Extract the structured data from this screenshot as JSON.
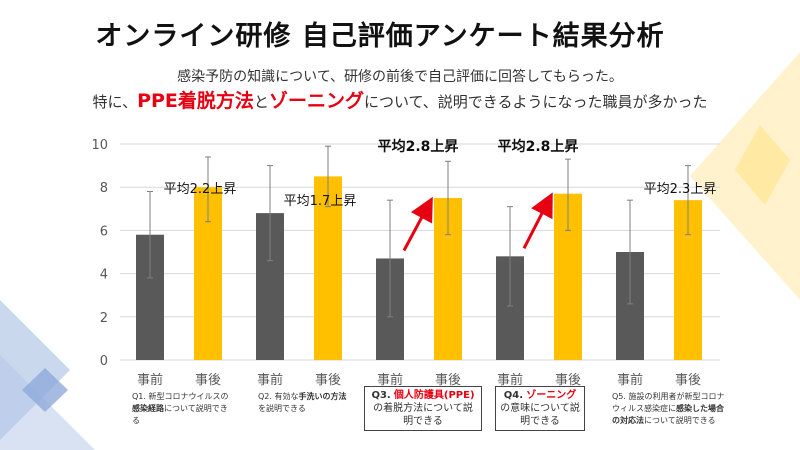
{
  "title": "オンライン研修 自己評価アンケート結果分析",
  "subtitle_line1": "感染予防の知識について、研修の前後で自己評価に回答してもらった。",
  "subtitle_line2": {
    "part1": "特に、",
    "highlight1": "PPE着脱方法",
    "part2": "と",
    "highlight2": "ゾーニング",
    "part3": "について、説明できるようになった職員が多かった"
  },
  "colors": {
    "before": "#595959",
    "after": "#ffc000",
    "accent": "#e60012",
    "deco_blue": "#b4c7e7",
    "deco_yellow": "#ffe699"
  },
  "chart_data": {
    "type": "bar",
    "ylim": [
      0,
      10
    ],
    "yticks": [
      "0",
      "2",
      "4",
      "6",
      "8",
      "10"
    ],
    "grid": true,
    "groups": [
      {
        "labels": [
          "事前",
          "事後"
        ],
        "values": [
          5.8,
          8.0
        ],
        "err_hi": [
          7.8,
          9.4
        ],
        "err_lo": [
          3.8,
          6.4
        ],
        "annotation": "平均2.2上昇"
      },
      {
        "labels": [
          "事前",
          "事後"
        ],
        "values": [
          6.8,
          8.5
        ],
        "err_hi": [
          9.0,
          9.9
        ],
        "err_lo": [
          4.6,
          7.1
        ],
        "annotation": "平均1.7上昇"
      },
      {
        "labels": [
          "事前",
          "事後"
        ],
        "values": [
          4.7,
          7.5
        ],
        "err_hi": [
          7.4,
          9.2
        ],
        "err_lo": [
          2.0,
          5.8
        ],
        "annotation": "平均2.8上昇"
      },
      {
        "labels": [
          "事前",
          "事後"
        ],
        "values": [
          4.8,
          7.7
        ],
        "err_hi": [
          7.1,
          9.3
        ],
        "err_lo": [
          2.5,
          6.0
        ],
        "annotation": "平均2.8上昇"
      },
      {
        "labels": [
          "事前",
          "事後"
        ],
        "values": [
          5.0,
          7.4
        ],
        "err_hi": [
          7.4,
          9.0
        ],
        "err_lo": [
          2.6,
          5.8
        ],
        "annotation": "平均2.3上昇"
      }
    ]
  },
  "questions": [
    {
      "id": "Q1.",
      "pre": " 新型コロナウイルスの",
      "bold": "感染経路",
      "post": "について説明できる"
    },
    {
      "id": "Q2.",
      "pre": " 有効な",
      "bold": "手洗いの方法",
      "post": "を説明できる"
    },
    {
      "id": "Q3.",
      "red": "個人防護具(PPE)",
      "post": "の着脱方法について説明できる"
    },
    {
      "id": "Q4.",
      "red": "ゾーニング",
      "post": "の意味について説明できる"
    },
    {
      "id": "Q5.",
      "pre": " 施設の利用者が新型コロナウィルス感染症に",
      "bold": "感染した場合の対応法",
      "post": "について説明できる"
    }
  ]
}
